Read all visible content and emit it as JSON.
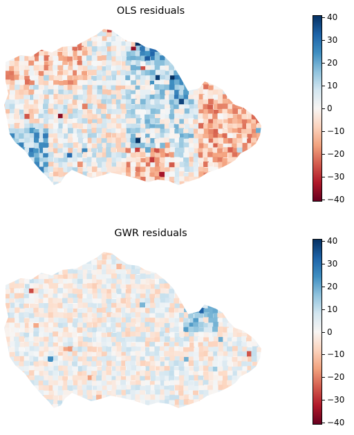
{
  "maps": [
    {
      "title": "OLS residuals",
      "colorbar": {
        "min": -41,
        "max": 41,
        "ticks": [
          "40",
          "30",
          "20",
          "10",
          "0",
          "−10",
          "−20",
          "−30",
          "−40"
        ],
        "tick_values": [
          40,
          30,
          20,
          10,
          0,
          -10,
          -20,
          -30,
          -40
        ],
        "colormap": "RdBu"
      },
      "pattern": "strong"
    },
    {
      "title": "GWR residuals",
      "colorbar": {
        "min": -41,
        "max": 41,
        "ticks": [
          "40",
          "30",
          "20",
          "10",
          "0",
          "−10",
          "−20",
          "−30",
          "−40"
        ],
        "tick_values": [
          40,
          30,
          20,
          10,
          0,
          -10,
          -20,
          -30,
          -40
        ],
        "colormap": "RdBu"
      },
      "pattern": "weak"
    }
  ],
  "colors": {
    "strong_negative": "#67001f",
    "neutral": "#f7f7f7",
    "strong_positive": "#053061"
  }
}
